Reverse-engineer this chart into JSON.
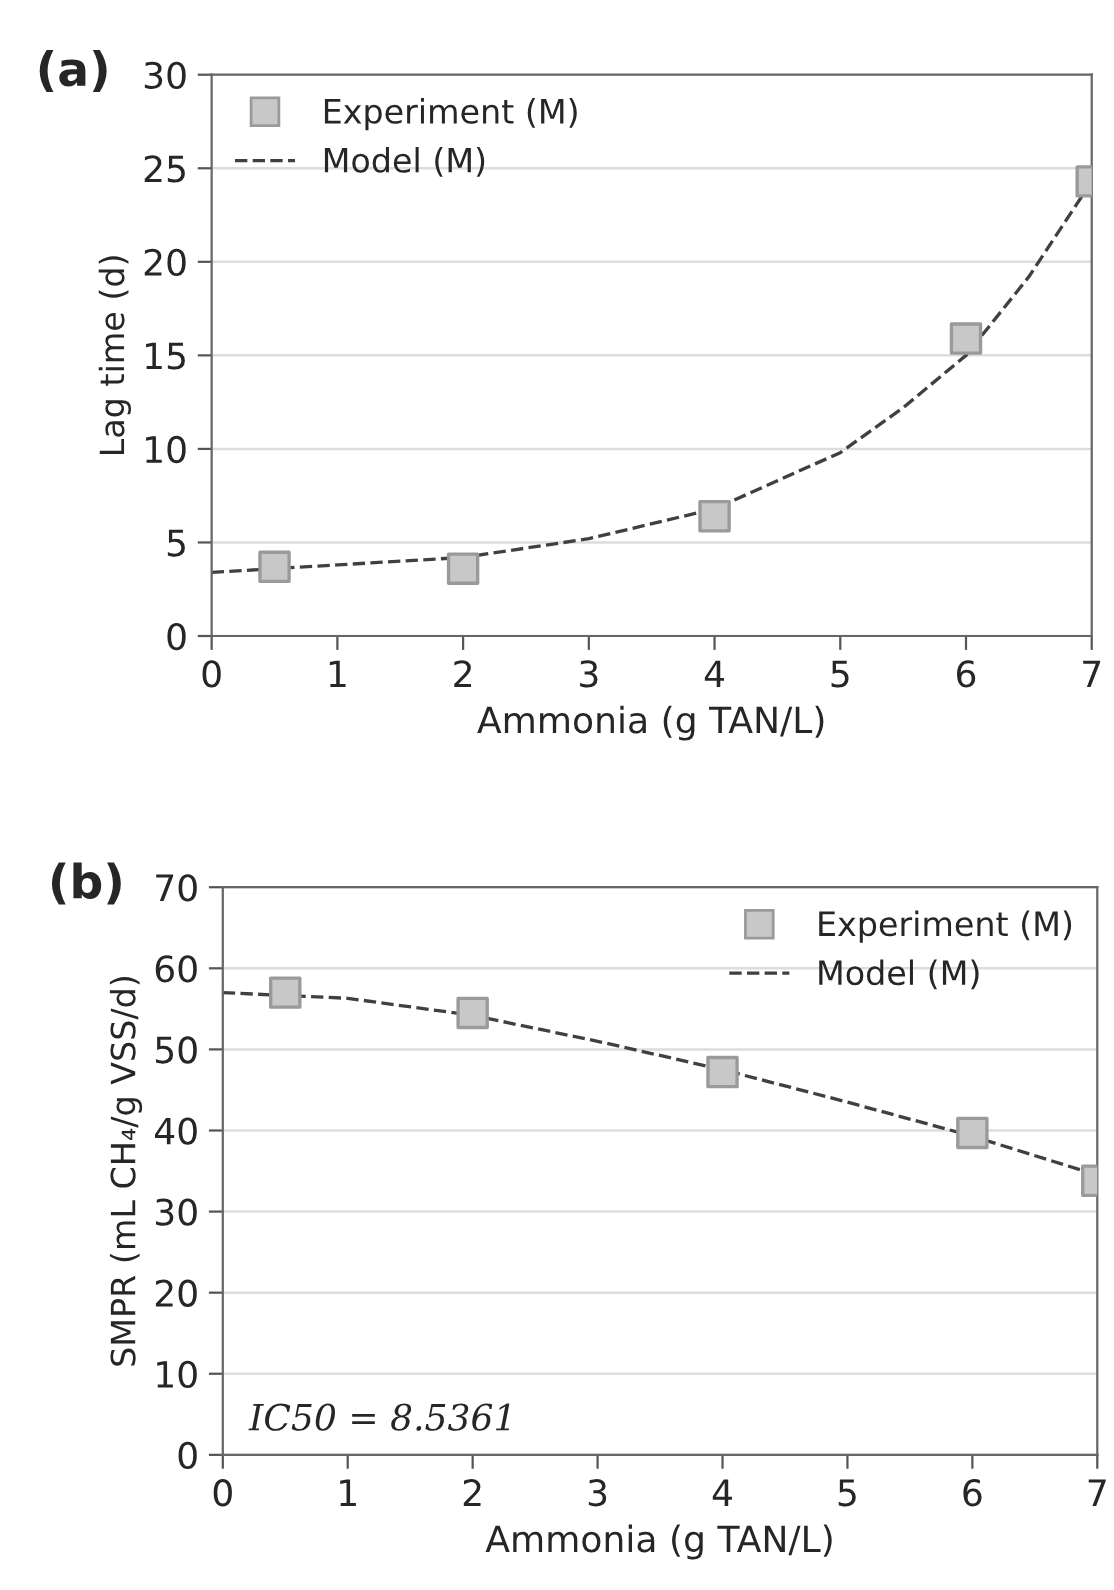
{
  "chart_data": [
    {
      "type": "scatter",
      "title": "(a)",
      "xlabel": "Ammonia (g TAN/L)",
      "ylabel": "Lag time (d)",
      "xlim": [
        0,
        7
      ],
      "xticks": [
        0,
        1,
        2,
        3,
        4,
        5,
        6,
        7
      ],
      "ylim": [
        0,
        30
      ],
      "yticks": [
        0,
        5,
        10,
        15,
        20,
        25,
        30
      ],
      "grid": "y",
      "legend": "top left",
      "series": [
        {
          "name": "Experiment (M)",
          "marker": "square",
          "color": "#c8c8c8",
          "x": [
            0.5,
            2,
            4,
            6,
            7
          ],
          "values": [
            3.7,
            3.6,
            6.4,
            15.9,
            24.3
          ]
        },
        {
          "name": "Model (M)",
          "type": "line",
          "marker": "none",
          "line_style": "dashed",
          "color": "#404040",
          "x": [
            0,
            1,
            2,
            3,
            4,
            5,
            5.5,
            6,
            6.5,
            7
          ],
          "values": [
            3.4,
            3.8,
            4.2,
            5.2,
            6.8,
            9.8,
            12.2,
            15.0,
            19.2,
            24.3
          ]
        }
      ]
    },
    {
      "type": "scatter",
      "title": "(b)",
      "xlabel": "Ammonia (g TAN/L)",
      "ylabel": "SMPR (mL CH₄/g VSS/d)",
      "xlim": [
        0,
        7
      ],
      "xticks": [
        0,
        1,
        2,
        3,
        4,
        5,
        6,
        7
      ],
      "ylim": [
        0,
        70
      ],
      "yticks": [
        0,
        10,
        20,
        30,
        40,
        50,
        60,
        70
      ],
      "grid": "y",
      "legend": "top right",
      "annotations": [
        "IC50 = 8.5361"
      ],
      "series": [
        {
          "name": "Experiment (M)",
          "marker": "square",
          "color": "#c8c8c8",
          "x": [
            0.5,
            2,
            4,
            6,
            7
          ],
          "values": [
            57.0,
            54.5,
            47.2,
            39.7,
            33.8
          ]
        },
        {
          "name": "Model (M)",
          "type": "line",
          "marker": "none",
          "line_style": "dashed",
          "color": "#404040",
          "x": [
            0,
            1,
            2,
            3,
            4,
            5,
            6,
            7
          ],
          "values": [
            57.0,
            56.3,
            54.2,
            51.0,
            47.5,
            43.5,
            39.3,
            34.5
          ]
        }
      ]
    }
  ]
}
